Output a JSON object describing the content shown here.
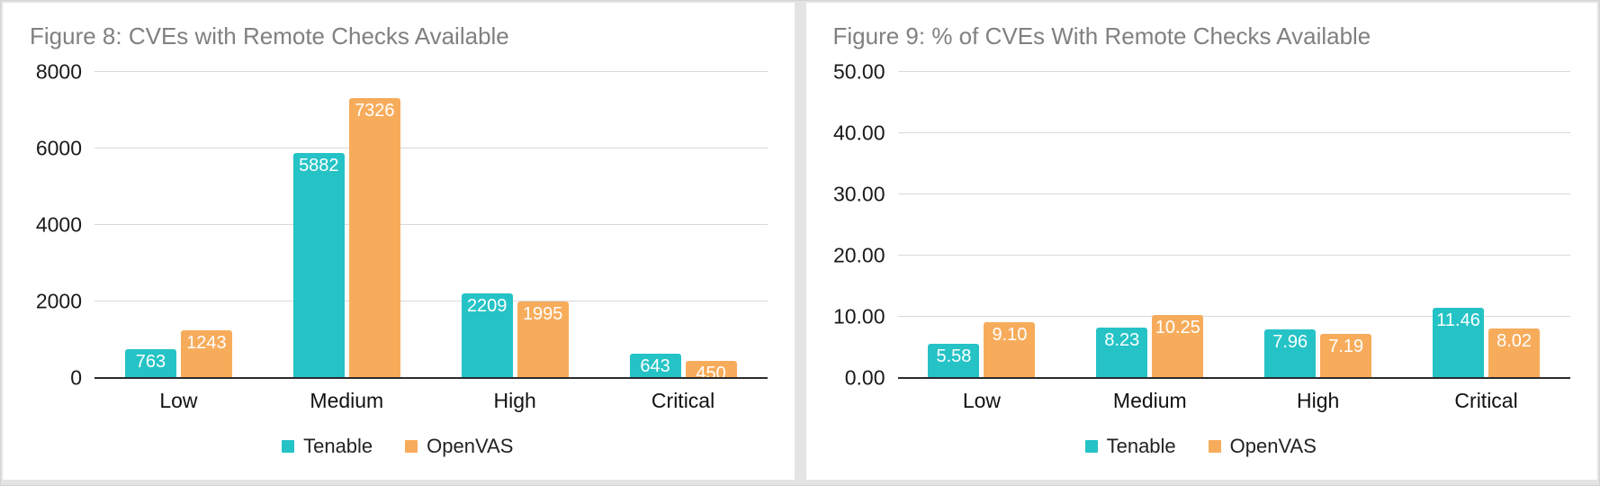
{
  "styles": {
    "title_color": "#808080",
    "gridline_color": "#d9d9d9",
    "axis_color": "#2b2b2b",
    "tick_color": "#1a1a1a",
    "bar_label_color": "#ffffff",
    "tenable_color": "#25c3c6",
    "openvas_color": "#f7ac5b",
    "panel_background": "#ffffff",
    "page_background": "#e4e4e4"
  },
  "chart_data": [
    {
      "type": "bar",
      "title": "Figure 8: CVEs with Remote Checks Available",
      "categories": [
        "Low",
        "Medium",
        "High",
        "Critical"
      ],
      "series": [
        {
          "name": "Tenable",
          "color": "#25c3c6",
          "values": [
            763,
            5882,
            2209,
            643
          ],
          "labels": [
            "763",
            "5882",
            "2209",
            "643"
          ]
        },
        {
          "name": "OpenVAS",
          "color": "#f7ac5b",
          "values": [
            1243,
            7326,
            1995,
            450
          ],
          "labels": [
            "1243",
            "7326",
            "1995",
            "450"
          ]
        }
      ],
      "xlabel": "",
      "ylabel": "",
      "ylim": [
        0,
        8000
      ],
      "yticks": [
        0,
        2000,
        4000,
        6000,
        8000
      ],
      "ytick_labels": [
        "0",
        "2000",
        "4000",
        "6000",
        "8000"
      ],
      "grid": true,
      "legend_position": "bottom",
      "data_labels": "inside-end"
    },
    {
      "type": "bar",
      "title": "Figure 9: % of CVEs With Remote Checks Available",
      "categories": [
        "Low",
        "Medium",
        "High",
        "Critical"
      ],
      "series": [
        {
          "name": "Tenable",
          "color": "#25c3c6",
          "values": [
            5.58,
            8.23,
            7.96,
            11.46
          ],
          "labels": [
            "5.58",
            "8.23",
            "7.96",
            "11.46"
          ]
        },
        {
          "name": "OpenVAS",
          "color": "#f7ac5b",
          "values": [
            9.1,
            10.25,
            7.19,
            8.02
          ],
          "labels": [
            "9.10",
            "10.25",
            "7.19",
            "8.02"
          ]
        }
      ],
      "xlabel": "",
      "ylabel": "",
      "ylim": [
        0,
        50
      ],
      "yticks": [
        0,
        10,
        20,
        30,
        40,
        50
      ],
      "ytick_labels": [
        "0.00",
        "10.00",
        "20.00",
        "30.00",
        "40.00",
        "50.00"
      ],
      "grid": true,
      "legend_position": "bottom",
      "data_labels": "inside-end"
    }
  ]
}
